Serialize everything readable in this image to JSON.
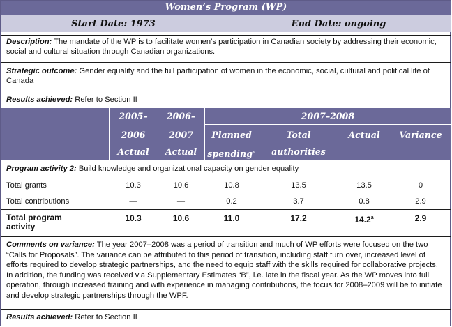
{
  "title": "Women’s Program (WP)",
  "start_date": "Start Date: 1973",
  "end_date": "End Date: ongoing",
  "description_label": "Description:",
  "description_text": " The mandate of the WP is to facilitate women’s participation in Canadian society by addressing their economic, social and cultural situation through Canadian organizations.",
  "strategic_label": "Strategic outcome:",
  "strategic_text": " Gender equality and the full participation of women in the economic, social, cultural and political life of Canada",
  "results_label": "Results achieved:",
  "results_text": " Refer to Section II",
  "table": {
    "col1_year_a": "2005–",
    "col1_year_b": "2006",
    "col1_sub": "Actual",
    "col2_year_a": "2006–",
    "col2_year_b": "2007",
    "col2_sub": "Actual",
    "group_header": "2007–2008",
    "planned_a": "Planned",
    "planned_b": "spending",
    "planned_sup": "a",
    "total_a": "Total",
    "total_b": "authorities",
    "actual": "Actual",
    "variance": "Variance"
  },
  "program_activity_label": "Program activity 2:",
  "program_activity_text": " Build knowledge and organizational capacity on gender equality",
  "rows": [
    {
      "label": "Total grants",
      "v1": "10.3",
      "v2": "10.6",
      "planned": "10.8",
      "total": "13.5",
      "actual": "13.5",
      "variance": "0"
    },
    {
      "label": "Total contributions",
      "v1": "—",
      "v2": "—",
      "planned": "0.2",
      "total": "3.7",
      "actual": "0.8",
      "variance": "2.9"
    }
  ],
  "total_row": {
    "label_a": "Total program",
    "label_b": "activity",
    "v1": "10.3",
    "v2": "10.6",
    "planned": "11.0",
    "total": "17.2",
    "actual": "14.2",
    "actual_sup": "a",
    "variance": "2.9"
  },
  "comments_label": "Comments on variance:",
  "comments_text": " The year 2007–2008 was a period of transition and much of WP efforts were focused on the two “Calls for Proposals”. The variance can be attributed to this period of transition, including staff turn over, increased level of efforts required to develop strategic partnerships, and the need to equip staff with the skills required for collaborative projects. In addition, the funding was received via Supplementary Estimates “B”, i.e. late in the fiscal year. As the WP moves into full operation, through increased training and with experience in managing contributions, the focus for 2008–2009 will be to initiate and develop strategic partnerships through the WPF.",
  "results2_label": "Results achieved:",
  "results2_text": " Refer to Section II"
}
